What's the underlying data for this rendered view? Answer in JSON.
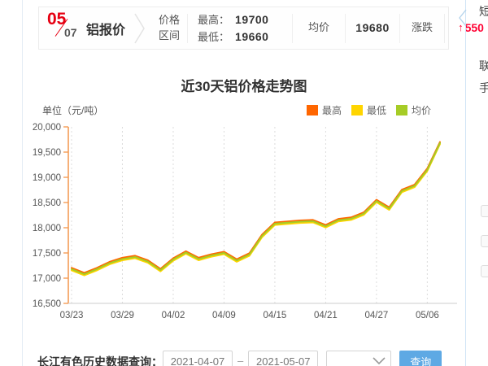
{
  "header": {
    "date_month": "05",
    "date_day": "07",
    "title": "铝报价",
    "range_label_line1": "价格",
    "range_label_line2": "区间",
    "high_label": "最高：",
    "high_value": "19700",
    "low_label": "最低：",
    "low_value": "19660",
    "avg_label": "均价",
    "avg_value": "19680",
    "change_label": "涨跌",
    "change_arrow": "↑",
    "change_value": "550"
  },
  "chart_data": {
    "type": "line",
    "title": "近30天铝价格走势图",
    "unit_label": "单位（元/吨）",
    "ylim": [
      16500,
      20000
    ],
    "y_ticks": [
      16500,
      17000,
      17500,
      18000,
      18500,
      19000,
      19500,
      20000
    ],
    "x_tick_labels": [
      "03/23",
      "03/29",
      "04/02",
      "04/09",
      "04/15",
      "04/21",
      "04/27",
      "05/06"
    ],
    "x_tick_indices": [
      0,
      4,
      8,
      12,
      16,
      20,
      24,
      28
    ],
    "num_points": 30,
    "grid": "vertical-dashed",
    "legend_position": "top-right",
    "series": [
      {
        "name": "最高",
        "color": "#ff6600",
        "values": [
          17205,
          17105,
          17205,
          17325,
          17405,
          17445,
          17355,
          17185,
          17395,
          17535,
          17405,
          17475,
          17525,
          17375,
          17495,
          17865,
          18105,
          18125,
          18145,
          18155,
          18055,
          18175,
          18205,
          18305,
          18555,
          18405,
          18755,
          18855,
          19175,
          19700
        ]
      },
      {
        "name": "最低",
        "color": "#ffd500",
        "values": [
          17155,
          17055,
          17155,
          17275,
          17355,
          17395,
          17305,
          17135,
          17345,
          17485,
          17355,
          17425,
          17475,
          17325,
          17445,
          17815,
          18055,
          18075,
          18095,
          18105,
          18005,
          18125,
          18155,
          18255,
          18505,
          18355,
          18705,
          18805,
          19125,
          19660
        ]
      },
      {
        "name": "均价",
        "color": "#a6cc26",
        "values": [
          17180,
          17080,
          17180,
          17300,
          17380,
          17420,
          17330,
          17160,
          17370,
          17510,
          17380,
          17450,
          17500,
          17350,
          17470,
          17840,
          18080,
          18100,
          18120,
          18130,
          18030,
          18150,
          18180,
          18280,
          18530,
          18380,
          18730,
          18830,
          19150,
          19680
        ]
      }
    ],
    "legend": [
      {
        "label": "最高",
        "color": "#ff6600"
      },
      {
        "label": "最低",
        "color": "#ffd500"
      },
      {
        "label": "均价",
        "color": "#a6cc26"
      }
    ]
  },
  "query_bar": {
    "label": "长江有色历史数据查询：",
    "start_date": "2021-04-07",
    "separator": "–",
    "end_date": "2021-05-07",
    "search_label": "查询"
  },
  "right_panel": {
    "fragment_top": "短",
    "fragment_mid1": "联",
    "fragment_mid2": "手"
  },
  "colors": {
    "accent_red": "#e60012",
    "change_red": "#ff0033",
    "axis_orange": "#f49d56",
    "button_blue": "#5ea9e4",
    "panel_divider_blue": "#cfe4f5"
  }
}
